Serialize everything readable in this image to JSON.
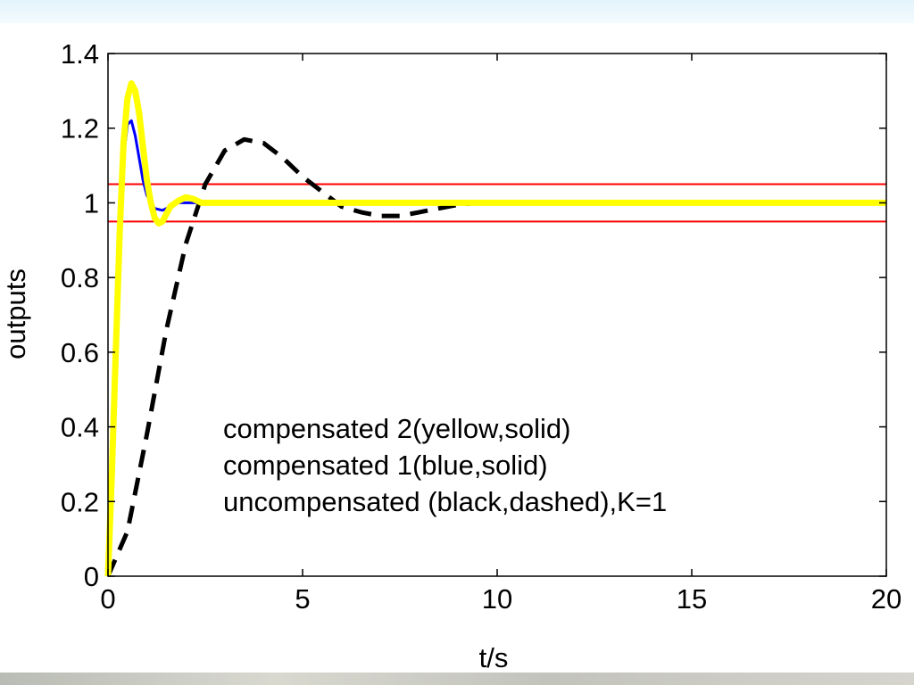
{
  "chart_data": {
    "type": "line",
    "title": "",
    "xlabel": "t/s",
    "ylabel": "outputs",
    "xlim": [
      0,
      20
    ],
    "ylim": [
      0,
      1.4
    ],
    "xticks": [
      "0",
      "5",
      "10",
      "15",
      "20"
    ],
    "yticks": [
      "0",
      "0.2",
      "0.4",
      "0.6",
      "0.8",
      "1",
      "1.2",
      "1.4"
    ],
    "grid": false,
    "legend_lines": [
      "compensated 2(yellow,solid)",
      "compensated 1(blue,solid)",
      "uncompensated (black,dashed),K=1"
    ],
    "reference_lines": [
      {
        "y": 1.05,
        "color": "#ff0000"
      },
      {
        "y": 0.95,
        "color": "#ff0000"
      }
    ],
    "series": [
      {
        "style": "dashed",
        "color": "#000000",
        "x": [
          0,
          0.5,
          1.0,
          1.5,
          2.0,
          2.5,
          3.0,
          3.5,
          4.0,
          4.5,
          5.0,
          5.5,
          6.0,
          6.5,
          7.0,
          7.5,
          8.0,
          8.5,
          9.0,
          9.5,
          10.0,
          11.0,
          12.0
        ],
        "values": [
          0,
          0.12,
          0.38,
          0.66,
          0.89,
          1.05,
          1.14,
          1.17,
          1.16,
          1.12,
          1.07,
          1.03,
          0.99,
          0.975,
          0.965,
          0.965,
          0.975,
          0.985,
          0.995,
          1.0,
          1.0,
          1.0,
          1.0
        ]
      },
      {
        "style": "solid",
        "color": "#0000ff",
        "x": [
          0,
          0.1,
          0.2,
          0.3,
          0.4,
          0.5,
          0.6,
          0.7,
          0.8,
          0.9,
          1.0,
          1.2,
          1.4,
          1.6,
          1.8,
          2.0,
          2.2,
          2.5,
          3.0
        ],
        "values": [
          0,
          0.35,
          0.72,
          0.96,
          1.12,
          1.21,
          1.22,
          1.18,
          1.12,
          1.06,
          1.02,
          0.985,
          0.98,
          0.99,
          1.0,
          1.0,
          1.0,
          1.0,
          1.0
        ]
      },
      {
        "style": "solid",
        "color": "#ffff00",
        "x": [
          0,
          0.1,
          0.2,
          0.3,
          0.4,
          0.5,
          0.6,
          0.7,
          0.8,
          0.9,
          1.0,
          1.1,
          1.2,
          1.3,
          1.4,
          1.5,
          1.6,
          1.8,
          2.0,
          2.2,
          2.4,
          2.6,
          3.0,
          20.0
        ],
        "values": [
          0,
          0.28,
          0.6,
          0.92,
          1.16,
          1.28,
          1.32,
          1.3,
          1.24,
          1.15,
          1.06,
          1.0,
          0.96,
          0.945,
          0.95,
          0.97,
          0.99,
          1.005,
          1.015,
          1.01,
          1.0,
          1.0,
          1.0,
          1.0
        ]
      }
    ]
  }
}
